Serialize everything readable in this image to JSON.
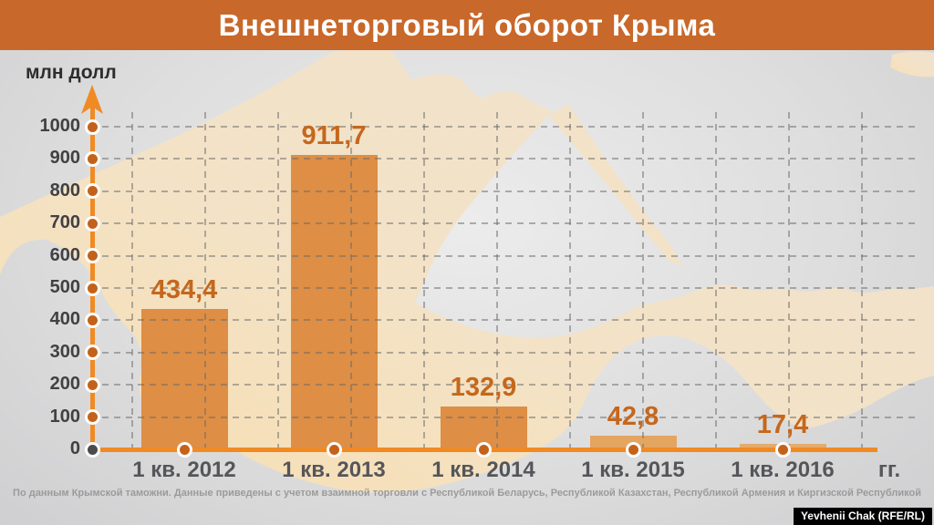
{
  "header": {
    "title": "Внешнеторговый оборот Крыма"
  },
  "chart_data": {
    "type": "bar",
    "title": "Внешнеторговый оборот Крыма",
    "ylabel": "млн долл",
    "xlabel": "гг.",
    "categories": [
      "1 кв. 2012",
      "1 кв. 2013",
      "1 кв. 2014",
      "1 кв. 2015",
      "1 кв. 2016"
    ],
    "values": [
      434.4,
      911.7,
      132.9,
      42.8,
      17.4
    ],
    "value_labels": [
      "434,4",
      "911,7",
      "132,9",
      "42,8",
      "17,4"
    ],
    "bar_colors": [
      "#DE8E45",
      "#DE8E45",
      "#DE8E45",
      "#E4A561",
      "#E6AB6B"
    ],
    "ylim": [
      0,
      1000
    ],
    "ytick_step": 100,
    "grid": true,
    "legend_position": "none"
  },
  "footer": {
    "source": "По данным Крымской таможни. Данные приведены с учетом взаимной торговли с Республикой Беларусь, Республикой Казахстан, Республикой Армения и Киргизской Республикой",
    "credit": "Yevhenii Chak (RFE/RL)"
  },
  "colors": {
    "title_bg": "#C8682A",
    "axis": "#F08A24",
    "tick_dot": "#C4621A",
    "origin_dot": "#4B4B4D",
    "value_label": "#C5671D",
    "x_label": "#55565A",
    "y_label": "#414042"
  }
}
